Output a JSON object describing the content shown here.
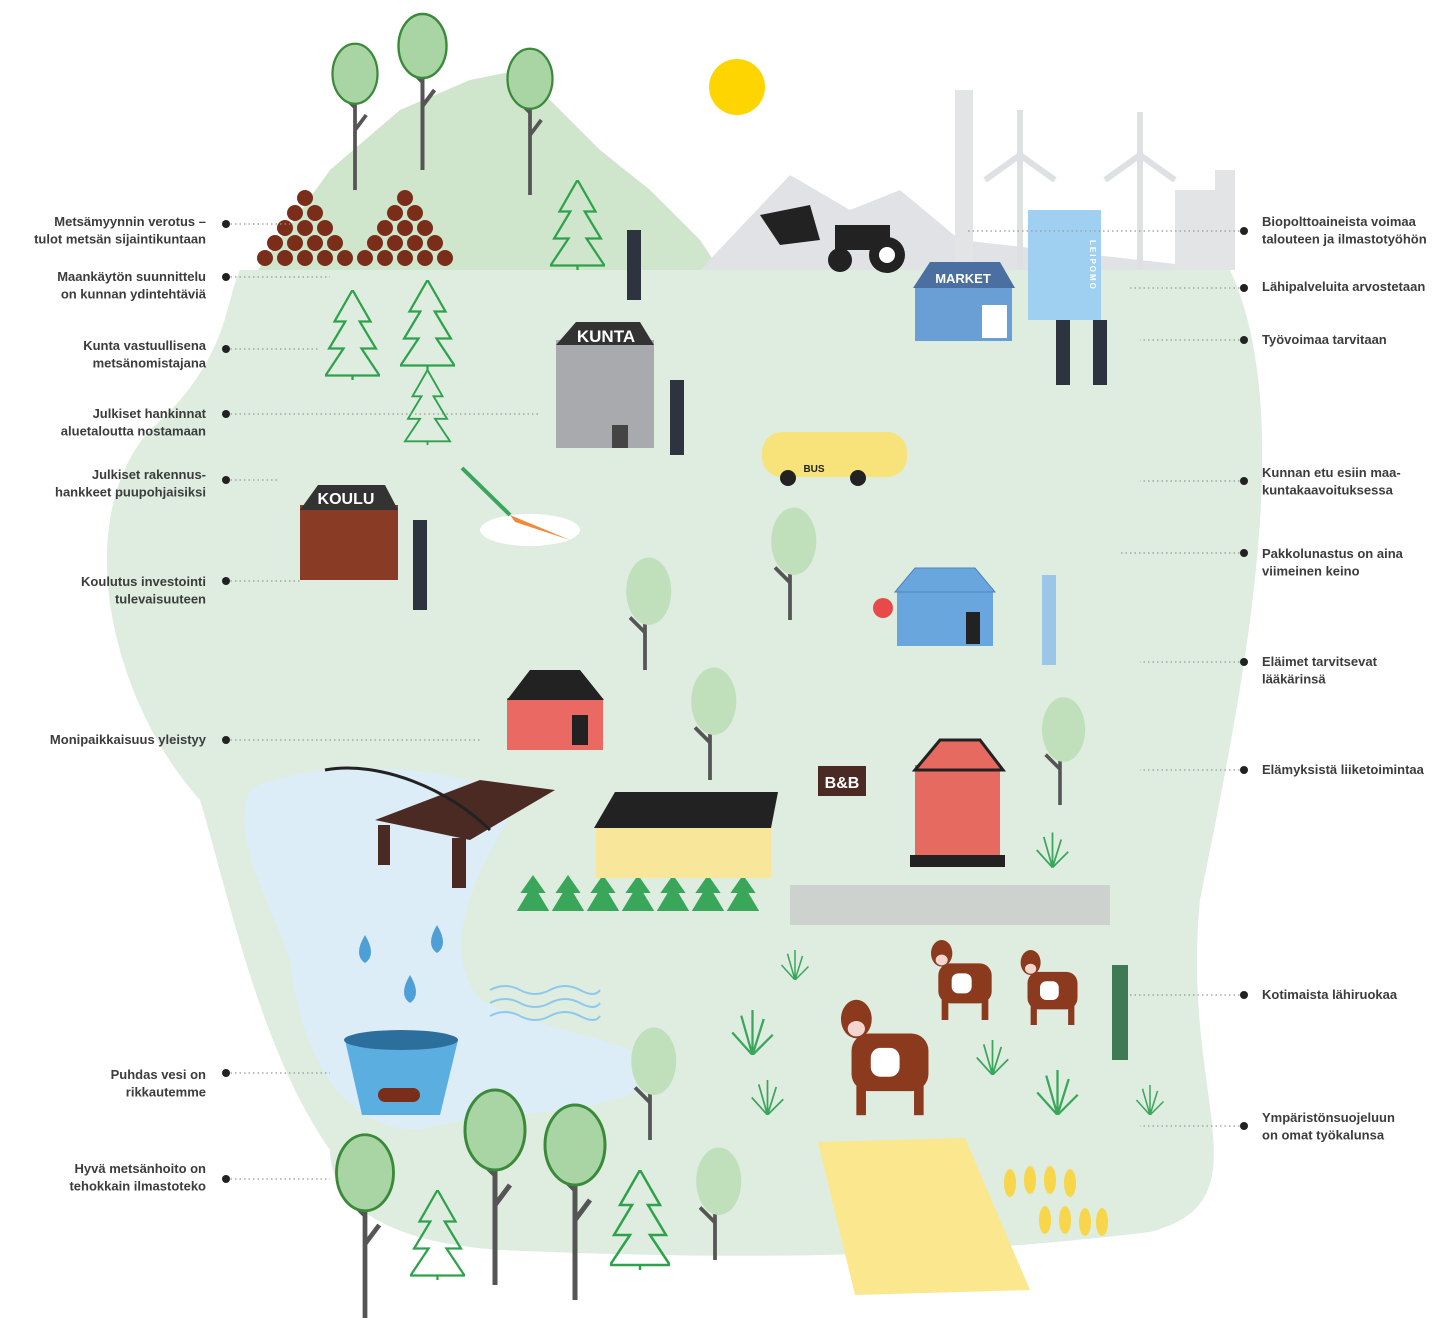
{
  "left_labels": [
    [
      "Metsämyynnin verotus –",
      "tulot metsän sijaintikuntaan"
    ],
    [
      "Maankäytön suunnittelu",
      "on kunnan ydintehtäviä"
    ],
    [
      "Kunta vastuullisena",
      "metsänomistajana"
    ],
    [
      "Julkiset hankinnat",
      "aluetaloutta nostamaan"
    ],
    [
      "Julkiset rakennus-",
      "hankkeet puupohjaisiksi"
    ],
    [
      "Koulutus investointi",
      "tulevaisuuteen"
    ],
    [
      "Monipaikkaisuus yleistyy"
    ],
    [
      "Puhdas vesi on",
      "rikkautemme"
    ],
    [
      "Hyvä metsänhoito on",
      "tehokkain ilmastoteko"
    ]
  ],
  "right_labels": [
    [
      "Biopolttoaineista voimaa",
      "talouteen ja ilmastotyöhön"
    ],
    [
      "Lähipalveluita arvostetaan"
    ],
    [
      "Työvoimaa tarvitaan"
    ],
    [
      "Kunnan etu esiin maa-",
      "kuntakaavoituksessa"
    ],
    [
      "Pakkolunastus on aina",
      "viimeinen keino"
    ],
    [
      "Eläimet tarvitsevat",
      "lääkärinsä"
    ],
    [
      "Elämyksistä liiketoimintaa"
    ],
    [
      "Kotimaista lähiruokaa"
    ],
    [
      "Ympäristönsuojeluun",
      "on omat työkalunsa"
    ]
  ],
  "signs": {
    "kunta": "KUNTA",
    "koulu": "KOULU",
    "market": "MARKET",
    "bus": "BUS",
    "bnb": "B&B",
    "leipomo": "LEIPOMO"
  }
}
